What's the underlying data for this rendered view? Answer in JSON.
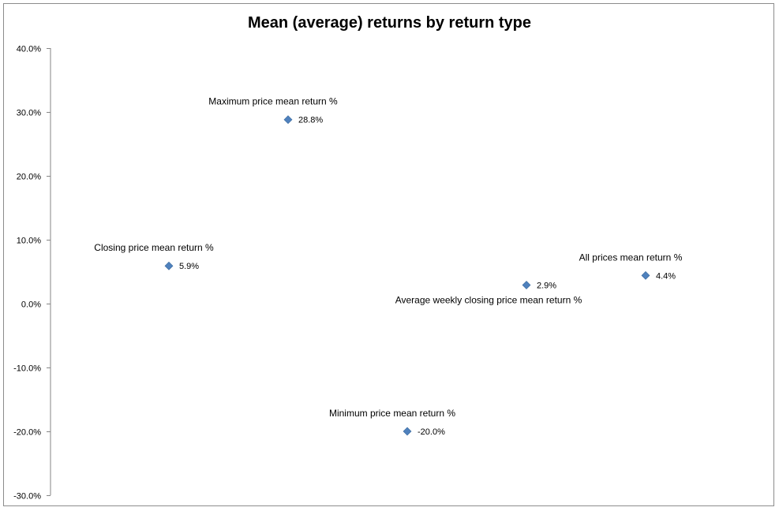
{
  "chart_data": {
    "type": "scatter",
    "title": "Mean (average) returns by return type",
    "xlabel": "",
    "ylabel": "",
    "ylim": [
      -30,
      40
    ],
    "y_ticks": [
      "40.0%",
      "30.0%",
      "20.0%",
      "10.0%",
      "0.0%",
      "-10.0%",
      "-20.0%",
      "-30.0%"
    ],
    "y_tick_values": [
      40,
      30,
      20,
      10,
      0,
      -10,
      -20,
      -30
    ],
    "x_axis_visible": false,
    "grid": false,
    "legend": "none",
    "marker_color": "#4f81bd",
    "points": [
      {
        "x": 1,
        "y": 5.9,
        "name": "Closing price mean return %",
        "value_label": "5.9%",
        "name_position": "above"
      },
      {
        "x": 2,
        "y": 28.8,
        "name": "Maximum price mean return %",
        "value_label": "28.8%",
        "name_position": "above"
      },
      {
        "x": 3,
        "y": -20.0,
        "name": "Minimum price mean return %",
        "value_label": "-20.0%",
        "name_position": "above"
      },
      {
        "x": 4,
        "y": 2.9,
        "name": "Average weekly closing price mean return %",
        "value_label": "2.9%",
        "name_position": "below"
      },
      {
        "x": 5,
        "y": 4.4,
        "name": "All prices mean return %",
        "value_label": "4.4%",
        "name_position": "above"
      }
    ]
  }
}
